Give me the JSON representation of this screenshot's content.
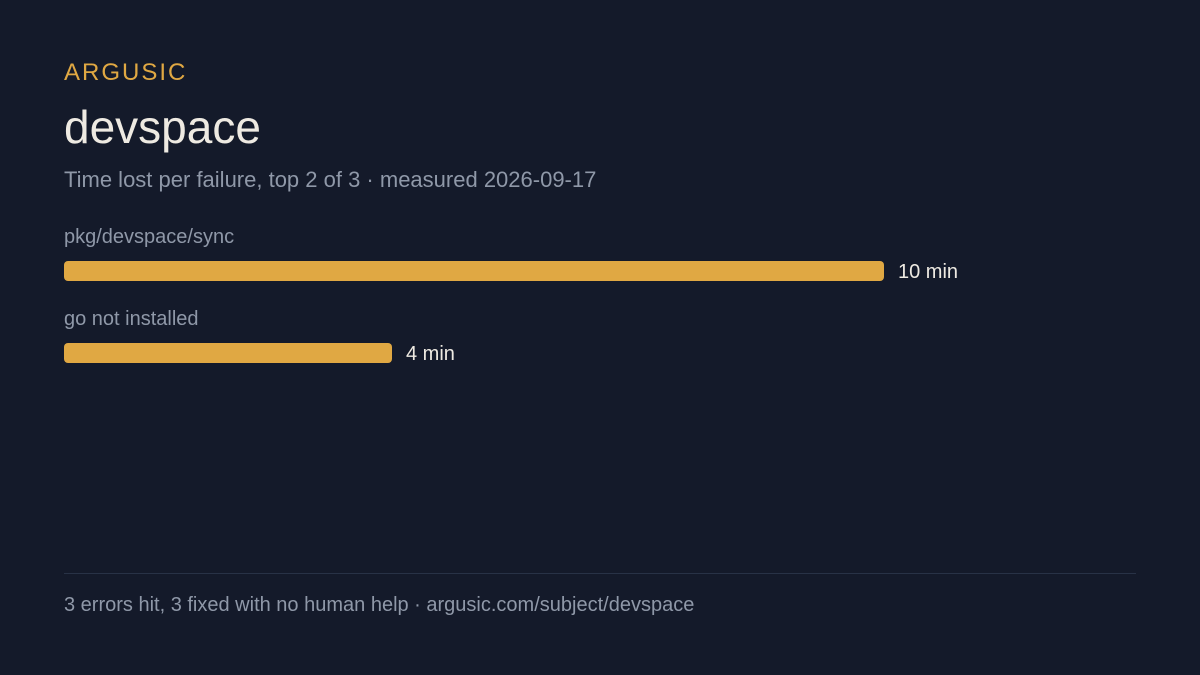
{
  "brand": "ARGUSIC",
  "title": "devspace",
  "subtitle": "Time lost per failure, top 2 of 3 · measured 2026-09-17",
  "footer": "3 errors hit, 3 fixed with no human help · argusic.com/subject/devspace",
  "colors": {
    "background": "#141a2a",
    "accent": "#e0a843",
    "title": "#eeeae2",
    "muted": "#8f98a8",
    "value_text": "#eeeae2"
  },
  "chart_data": {
    "type": "bar",
    "orientation": "horizontal",
    "title": "",
    "xlabel": "",
    "ylabel": "",
    "unit": "min",
    "categories": [
      "pkg/devspace/sync",
      "go not installed"
    ],
    "values": [
      10,
      4
    ],
    "value_labels": [
      "10 min",
      "4 min"
    ],
    "xlim": [
      0,
      10
    ],
    "grid": false,
    "legend": "none"
  }
}
